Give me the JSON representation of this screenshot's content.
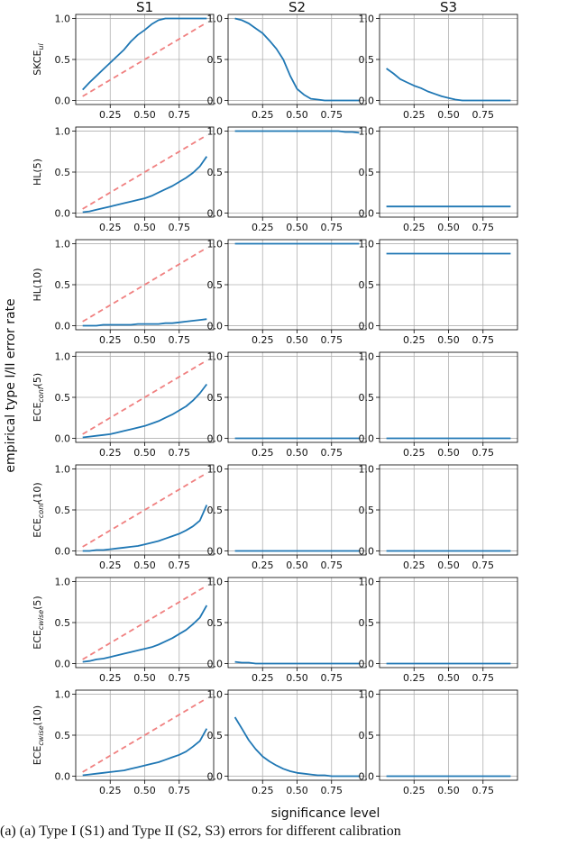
{
  "figure": {
    "column_titles": [
      "S1",
      "S2",
      "S3"
    ],
    "ylabel": "empirical type I/II error rate",
    "xlabel": "significance level",
    "caption_fragment": "(a) (a) Type I (S1) and Type II (S2, S3) errors for different calibration"
  },
  "colors": {
    "series": "#1f77b4",
    "reference": "#f08080",
    "grid": "#b0b0b0"
  },
  "chart_data": [
    {
      "type": "line",
      "row_label": {
        "base": "SKCE",
        "sub": "ul",
        "suffix": ""
      },
      "x": [
        0.05,
        0.1,
        0.15,
        0.2,
        0.25,
        0.3,
        0.35,
        0.4,
        0.45,
        0.5,
        0.55,
        0.6,
        0.65,
        0.7,
        0.75,
        0.8,
        0.85,
        0.9,
        0.95
      ],
      "xticks": [
        0.25,
        0.5,
        0.75
      ],
      "xtick_labels": [
        "0.25",
        "0.50",
        "0.75"
      ],
      "yticks": [
        0.0,
        0.5,
        1.0
      ],
      "ytick_labels": [
        "0.0",
        "0.5",
        "1.0"
      ],
      "xlim": [
        0,
        1
      ],
      "ylim": [
        -0.05,
        1.05
      ],
      "grid": true,
      "reference_line": [
        [
          0.05,
          0.05
        ],
        [
          0.95,
          0.95
        ]
      ],
      "panels": [
        [
          0.13,
          0.22,
          0.3,
          0.38,
          0.46,
          0.54,
          0.62,
          0.72,
          0.8,
          0.86,
          0.93,
          0.98,
          1.0,
          1.0,
          1.0,
          1.0,
          1.0,
          1.0,
          1.0
        ],
        [
          1.0,
          0.98,
          0.94,
          0.88,
          0.82,
          0.73,
          0.63,
          0.5,
          0.3,
          0.14,
          0.07,
          0.02,
          0.01,
          0.0,
          0.0,
          0.0,
          0.0,
          0.0,
          0.0
        ],
        [
          0.39,
          0.33,
          0.26,
          0.22,
          0.18,
          0.15,
          0.11,
          0.08,
          0.05,
          0.03,
          0.01,
          0.0,
          0.0,
          0.0,
          0.0,
          0.0,
          0.0,
          0.0,
          0.0
        ]
      ]
    },
    {
      "type": "line",
      "row_label": {
        "base": "HL(5)",
        "sub": "",
        "suffix": ""
      },
      "x": [
        0.05,
        0.1,
        0.15,
        0.2,
        0.25,
        0.3,
        0.35,
        0.4,
        0.45,
        0.5,
        0.55,
        0.6,
        0.65,
        0.7,
        0.75,
        0.8,
        0.85,
        0.9,
        0.95
      ],
      "xticks": [
        0.25,
        0.5,
        0.75
      ],
      "xtick_labels": [
        "0.25",
        "0.50",
        "0.75"
      ],
      "yticks": [
        0.0,
        0.5,
        1.0
      ],
      "ytick_labels": [
        "0.0",
        "0.5",
        "1.0"
      ],
      "xlim": [
        0,
        1
      ],
      "ylim": [
        -0.05,
        1.05
      ],
      "grid": true,
      "reference_line": [
        [
          0.05,
          0.05
        ],
        [
          0.95,
          0.95
        ]
      ],
      "panels": [
        [
          0.01,
          0.02,
          0.04,
          0.06,
          0.08,
          0.1,
          0.12,
          0.14,
          0.16,
          0.18,
          0.21,
          0.25,
          0.29,
          0.33,
          0.38,
          0.43,
          0.49,
          0.57,
          0.69
        ],
        [
          1.0,
          1.0,
          1.0,
          1.0,
          1.0,
          1.0,
          1.0,
          1.0,
          1.0,
          1.0,
          1.0,
          1.0,
          1.0,
          1.0,
          1.0,
          1.0,
          0.99,
          0.99,
          0.98
        ],
        [
          0.08,
          0.08,
          0.08,
          0.08,
          0.08,
          0.08,
          0.08,
          0.08,
          0.08,
          0.08,
          0.08,
          0.08,
          0.08,
          0.08,
          0.08,
          0.08,
          0.08,
          0.08,
          0.08
        ]
      ]
    },
    {
      "type": "line",
      "row_label": {
        "base": "HL(10)",
        "sub": "",
        "suffix": ""
      },
      "x": [
        0.05,
        0.1,
        0.15,
        0.2,
        0.25,
        0.3,
        0.35,
        0.4,
        0.45,
        0.5,
        0.55,
        0.6,
        0.65,
        0.7,
        0.75,
        0.8,
        0.85,
        0.9,
        0.95
      ],
      "xticks": [
        0.25,
        0.5,
        0.75
      ],
      "xtick_labels": [
        "0.25",
        "0.50",
        "0.75"
      ],
      "yticks": [
        0.0,
        0.5,
        1.0
      ],
      "ytick_labels": [
        "0.0",
        "0.5",
        "1.0"
      ],
      "xlim": [
        0,
        1
      ],
      "ylim": [
        -0.05,
        1.05
      ],
      "grid": true,
      "reference_line": [
        [
          0.05,
          0.05
        ],
        [
          0.95,
          0.95
        ]
      ],
      "panels": [
        [
          0.0,
          0.0,
          0.0,
          0.01,
          0.01,
          0.01,
          0.01,
          0.01,
          0.02,
          0.02,
          0.02,
          0.02,
          0.03,
          0.03,
          0.04,
          0.05,
          0.06,
          0.07,
          0.08
        ],
        [
          1.0,
          1.0,
          1.0,
          1.0,
          1.0,
          1.0,
          1.0,
          1.0,
          1.0,
          1.0,
          1.0,
          1.0,
          1.0,
          1.0,
          1.0,
          1.0,
          1.0,
          1.0,
          1.0
        ],
        [
          0.88,
          0.88,
          0.88,
          0.88,
          0.88,
          0.88,
          0.88,
          0.88,
          0.88,
          0.88,
          0.88,
          0.88,
          0.88,
          0.88,
          0.88,
          0.88,
          0.88,
          0.88,
          0.88
        ]
      ]
    },
    {
      "type": "line",
      "row_label": {
        "base": "ECE",
        "sub": "conf",
        "suffix": "(5)"
      },
      "x": [
        0.05,
        0.1,
        0.15,
        0.2,
        0.25,
        0.3,
        0.35,
        0.4,
        0.45,
        0.5,
        0.55,
        0.6,
        0.65,
        0.7,
        0.75,
        0.8,
        0.85,
        0.9,
        0.95
      ],
      "xticks": [
        0.25,
        0.5,
        0.75
      ],
      "xtick_labels": [
        "0.25",
        "0.50",
        "0.75"
      ],
      "yticks": [
        0.0,
        0.5,
        1.0
      ],
      "ytick_labels": [
        "0.0",
        "0.5",
        "1.0"
      ],
      "xlim": [
        0,
        1
      ],
      "ylim": [
        -0.05,
        1.05
      ],
      "grid": true,
      "reference_line": [
        [
          0.05,
          0.05
        ],
        [
          0.95,
          0.95
        ]
      ],
      "panels": [
        [
          0.01,
          0.02,
          0.03,
          0.04,
          0.05,
          0.07,
          0.09,
          0.11,
          0.13,
          0.15,
          0.18,
          0.21,
          0.25,
          0.29,
          0.34,
          0.39,
          0.46,
          0.55,
          0.66
        ],
        [
          0.0,
          0.0,
          0.0,
          0.0,
          0.0,
          0.0,
          0.0,
          0.0,
          0.0,
          0.0,
          0.0,
          0.0,
          0.0,
          0.0,
          0.0,
          0.0,
          0.0,
          0.0,
          0.0
        ],
        [
          0.0,
          0.0,
          0.0,
          0.0,
          0.0,
          0.0,
          0.0,
          0.0,
          0.0,
          0.0,
          0.0,
          0.0,
          0.0,
          0.0,
          0.0,
          0.0,
          0.0,
          0.0,
          0.0
        ]
      ]
    },
    {
      "type": "line",
      "row_label": {
        "base": "ECE",
        "sub": "conf",
        "suffix": "(10)"
      },
      "x": [
        0.05,
        0.1,
        0.15,
        0.2,
        0.25,
        0.3,
        0.35,
        0.4,
        0.45,
        0.5,
        0.55,
        0.6,
        0.65,
        0.7,
        0.75,
        0.8,
        0.85,
        0.9,
        0.95
      ],
      "xticks": [
        0.25,
        0.5,
        0.75
      ],
      "xtick_labels": [
        "0.25",
        "0.50",
        "0.75"
      ],
      "yticks": [
        0.0,
        0.5,
        1.0
      ],
      "ytick_labels": [
        "0.0",
        "0.5",
        "1.0"
      ],
      "xlim": [
        0,
        1
      ],
      "ylim": [
        -0.05,
        1.05
      ],
      "grid": true,
      "reference_line": [
        [
          0.05,
          0.05
        ],
        [
          0.95,
          0.95
        ]
      ],
      "panels": [
        [
          0.0,
          0.0,
          0.01,
          0.01,
          0.02,
          0.03,
          0.04,
          0.05,
          0.06,
          0.08,
          0.1,
          0.12,
          0.15,
          0.18,
          0.21,
          0.25,
          0.3,
          0.37,
          0.56
        ],
        [
          0.0,
          0.0,
          0.0,
          0.0,
          0.0,
          0.0,
          0.0,
          0.0,
          0.0,
          0.0,
          0.0,
          0.0,
          0.0,
          0.0,
          0.0,
          0.0,
          0.0,
          0.0,
          0.0
        ],
        [
          0.0,
          0.0,
          0.0,
          0.0,
          0.0,
          0.0,
          0.0,
          0.0,
          0.0,
          0.0,
          0.0,
          0.0,
          0.0,
          0.0,
          0.0,
          0.0,
          0.0,
          0.0,
          0.0
        ]
      ]
    },
    {
      "type": "line",
      "row_label": {
        "base": "ECE",
        "sub": "cwise",
        "suffix": "(5)"
      },
      "x": [
        0.05,
        0.1,
        0.15,
        0.2,
        0.25,
        0.3,
        0.35,
        0.4,
        0.45,
        0.5,
        0.55,
        0.6,
        0.65,
        0.7,
        0.75,
        0.8,
        0.85,
        0.9,
        0.95
      ],
      "xticks": [
        0.25,
        0.5,
        0.75
      ],
      "xtick_labels": [
        "0.25",
        "0.50",
        "0.75"
      ],
      "yticks": [
        0.0,
        0.5,
        1.0
      ],
      "ytick_labels": [
        "0.0",
        "0.5",
        "1.0"
      ],
      "xlim": [
        0,
        1
      ],
      "ylim": [
        -0.05,
        1.05
      ],
      "grid": true,
      "reference_line": [
        [
          0.05,
          0.05
        ],
        [
          0.95,
          0.95
        ]
      ],
      "panels": [
        [
          0.02,
          0.03,
          0.05,
          0.06,
          0.08,
          0.1,
          0.12,
          0.14,
          0.16,
          0.18,
          0.2,
          0.23,
          0.27,
          0.31,
          0.36,
          0.41,
          0.48,
          0.56,
          0.71
        ],
        [
          0.02,
          0.01,
          0.01,
          0.0,
          0.0,
          0.0,
          0.0,
          0.0,
          0.0,
          0.0,
          0.0,
          0.0,
          0.0,
          0.0,
          0.0,
          0.0,
          0.0,
          0.0,
          0.0
        ],
        [
          0.0,
          0.0,
          0.0,
          0.0,
          0.0,
          0.0,
          0.0,
          0.0,
          0.0,
          0.0,
          0.0,
          0.0,
          0.0,
          0.0,
          0.0,
          0.0,
          0.0,
          0.0,
          0.0
        ]
      ]
    },
    {
      "type": "line",
      "row_label": {
        "base": "ECE",
        "sub": "cwise",
        "suffix": "(10)"
      },
      "x": [
        0.05,
        0.1,
        0.15,
        0.2,
        0.25,
        0.3,
        0.35,
        0.4,
        0.45,
        0.5,
        0.55,
        0.6,
        0.65,
        0.7,
        0.75,
        0.8,
        0.85,
        0.9,
        0.95
      ],
      "xticks": [
        0.25,
        0.5,
        0.75
      ],
      "xtick_labels": [
        "0.25",
        "0.50",
        "0.75"
      ],
      "yticks": [
        0.0,
        0.5,
        1.0
      ],
      "ytick_labels": [
        "0.0",
        "0.5",
        "1.0"
      ],
      "xlim": [
        0,
        1
      ],
      "ylim": [
        -0.05,
        1.05
      ],
      "grid": true,
      "reference_line": [
        [
          0.05,
          0.05
        ],
        [
          0.95,
          0.95
        ]
      ],
      "panels": [
        [
          0.01,
          0.02,
          0.03,
          0.04,
          0.05,
          0.06,
          0.07,
          0.09,
          0.11,
          0.13,
          0.15,
          0.17,
          0.2,
          0.23,
          0.26,
          0.3,
          0.36,
          0.43,
          0.58
        ],
        [
          0.72,
          0.58,
          0.44,
          0.33,
          0.24,
          0.18,
          0.13,
          0.09,
          0.06,
          0.04,
          0.03,
          0.02,
          0.01,
          0.01,
          0.0,
          0.0,
          0.0,
          0.0,
          0.0
        ],
        [
          0.0,
          0.0,
          0.0,
          0.0,
          0.0,
          0.0,
          0.0,
          0.0,
          0.0,
          0.0,
          0.0,
          0.0,
          0.0,
          0.0,
          0.0,
          0.0,
          0.0,
          0.0,
          0.0
        ]
      ]
    }
  ]
}
